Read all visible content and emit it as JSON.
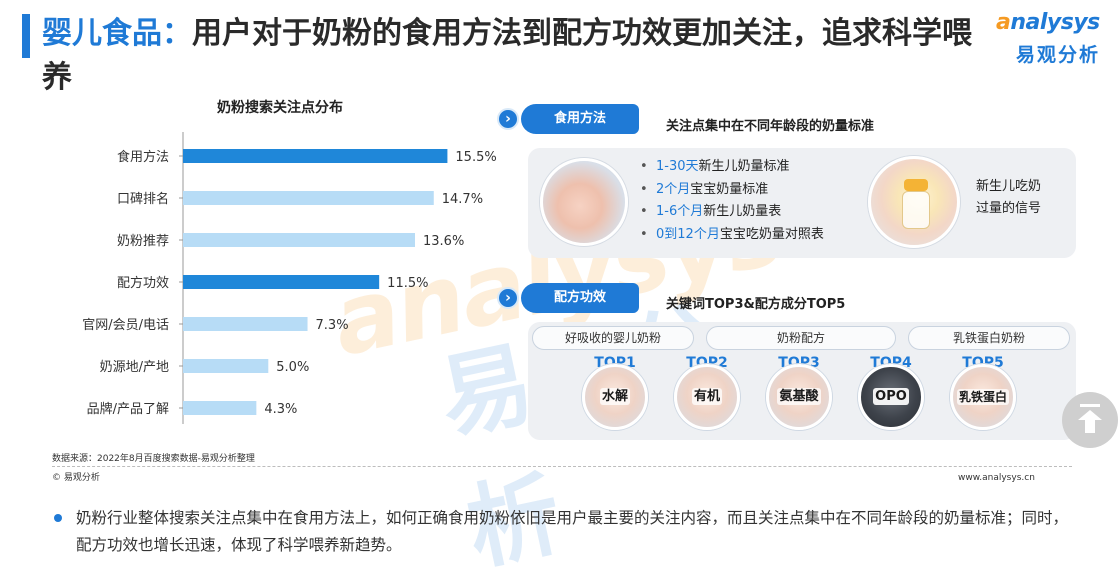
{
  "header": {
    "category": "婴儿食品：",
    "title": "用户对于奶粉的食用方法到配方功效更加关注，追求科学喂养"
  },
  "logo": {
    "wordmark_a": "a",
    "wordmark_rest": "nalysys",
    "cn": "易观分析"
  },
  "watermark": {
    "en": "analysys",
    "cn": "易观分析"
  },
  "colors": {
    "accent": "#1f7ad6",
    "bar_highlight": "#1f87d9",
    "bar_light": "#b7dcf6",
    "logo_orange": "#f59a22"
  },
  "chart_data": {
    "type": "bar",
    "orientation": "horizontal",
    "title": "奶粉搜索关注点分布",
    "categories": [
      "食用方法",
      "口碑排名",
      "奶粉推荐",
      "配方功效",
      "官网/会员/电话",
      "奶源地/产地",
      "品牌/产品了解"
    ],
    "values": [
      15.5,
      14.7,
      13.6,
      11.5,
      7.3,
      5.0,
      4.3
    ],
    "value_labels": [
      "15.5%",
      "14.7%",
      "13.6%",
      "11.5%",
      "7.3%",
      "5.0%",
      "4.3%"
    ],
    "highlighted": [
      true,
      false,
      false,
      true,
      false,
      false,
      false
    ],
    "xlim": [
      0,
      17
    ],
    "grid": false,
    "legend": "none"
  },
  "footer": {
    "source": "数据来源：2022年8月百度搜索数据-易观分析整理",
    "copyright": "© 易观分析",
    "website": "www.analysys.cn"
  },
  "section1": {
    "badge_icon": "›",
    "label": "食用方法",
    "desc": "关注点集中在不同年龄段的奶量标准",
    "photo_left_icon": "baby-photo-icon",
    "photo_right_icon": "bottle-photo-icon",
    "bullets": [
      {
        "hl": "1-30天",
        "text": "新生儿奶量标准"
      },
      {
        "hl": "2个月",
        "text": "宝宝奶量标准"
      },
      {
        "hl": "1-6个月",
        "text": "新生儿奶量表"
      },
      {
        "hl": "0到12个月",
        "text": "宝宝吃奶量对照表"
      }
    ],
    "signal_line1": "新生儿吃奶",
    "signal_line2": "过量的信号"
  },
  "section2": {
    "badge_icon": "›",
    "label": "配方功效",
    "desc": "关键词TOP3&配方成分TOP5",
    "keywords": [
      "好吸收的婴儿奶粉",
      "奶粉配方",
      "乳铁蛋白奶粉"
    ],
    "tops": [
      {
        "rank": "TOP1",
        "name": "水解"
      },
      {
        "rank": "TOP2",
        "name": "有机"
      },
      {
        "rank": "TOP3",
        "name": "氨基酸"
      },
      {
        "rank": "TOP4",
        "name": "OPO"
      },
      {
        "rank": "TOP5",
        "name": "乳铁蛋白"
      }
    ]
  },
  "summary": "奶粉行业整体搜索关注点集中在食用方法上，如何正确食用奶粉依旧是用户最主要的关注内容，而且关注点集中在不同年龄段的奶量标准；同时，配方功效也增长迅速，体现了科学喂养新趋势。"
}
